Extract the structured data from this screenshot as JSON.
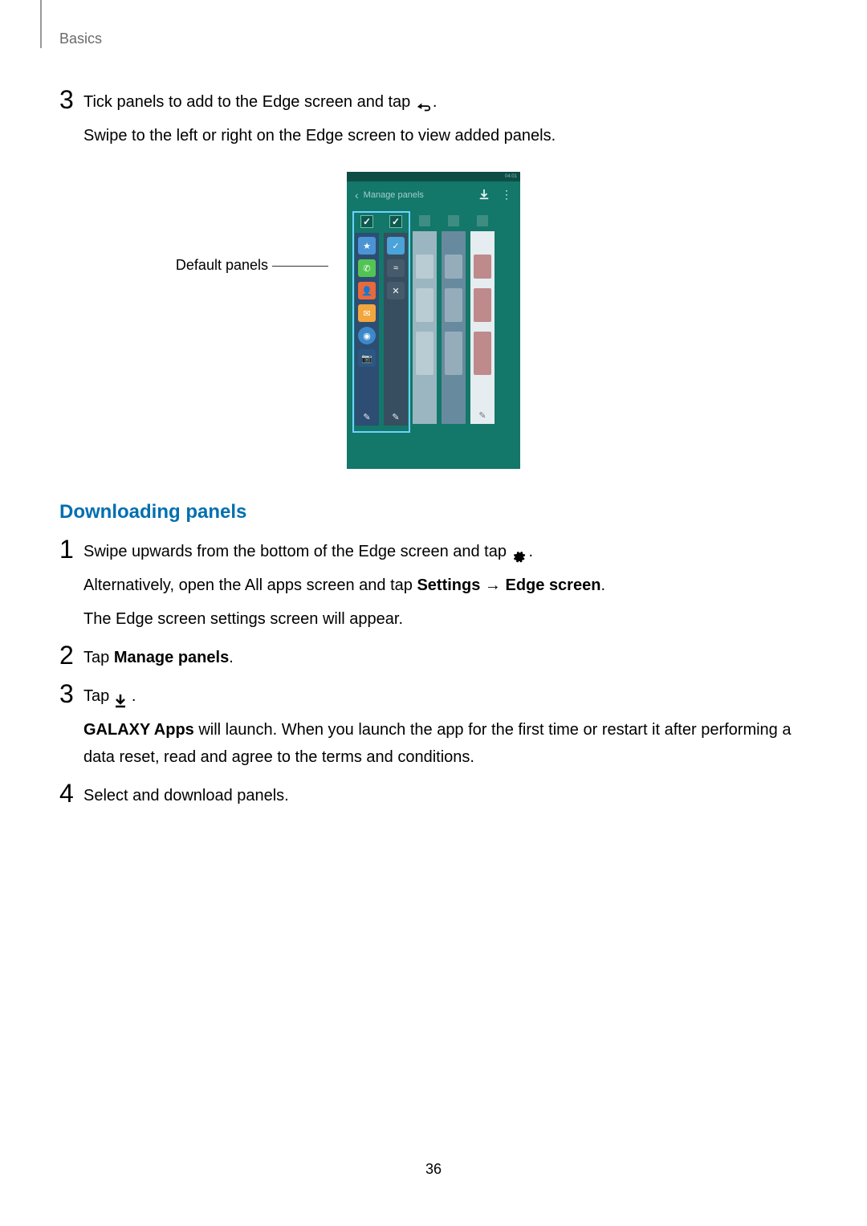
{
  "header": "Basics",
  "page_number": "36",
  "section1": {
    "step_num": "3",
    "step_line1_a": "Tick panels to add to the Edge screen and tap ",
    "step_line1_b": ".",
    "step_line2": "Swipe to the left or right on the Edge screen to view added panels."
  },
  "figure": {
    "callout": "Default panels",
    "screenshot": {
      "header_title": "Manage panels",
      "statusbar_time": "04:01",
      "panels": [
        {
          "type": "favorites",
          "bg": "#2d4d73",
          "checked": true,
          "icons": [
            {
              "bg": "#4a94d6",
              "glyph": "★"
            },
            {
              "bg": "#52c453",
              "glyph": "✆"
            },
            {
              "bg": "#e66a3c",
              "glyph": "👤"
            },
            {
              "bg": "#f2a63d",
              "glyph": "✉"
            },
            {
              "bg": "#3d88c9",
              "glyph": "◉",
              "round": true
            },
            {
              "bg": "#2b5780",
              "glyph": "📷"
            }
          ]
        },
        {
          "type": "apps",
          "bg": "#364e60",
          "checked": true,
          "icons": [
            {
              "bg": "#4aa3d9",
              "glyph": "✓"
            },
            {
              "bg": "rgba(255,255,255,0.08)",
              "glyph": "≈"
            },
            {
              "bg": "rgba(255,255,255,0.08)",
              "glyph": "✕"
            }
          ]
        },
        {
          "type": "feed1",
          "bg": "#9bb6c1",
          "checked": false
        },
        {
          "type": "feed2",
          "bg": "#688a9e",
          "checked": false
        },
        {
          "type": "feed3",
          "bg": "#e6edf0",
          "checked": false
        }
      ]
    }
  },
  "heading2": "Downloading panels",
  "section2_steps": [
    {
      "num": "1",
      "lines": [
        {
          "parts": [
            {
              "t": "Swipe upwards from the bottom of the Edge screen and tap "
            },
            {
              "icon": "gear"
            },
            {
              "t": "."
            }
          ]
        },
        {
          "parts": [
            {
              "t": "Alternatively, open the All apps screen and tap "
            },
            {
              "t": "Settings",
              "b": true
            },
            {
              "t": " → "
            },
            {
              "t": "Edge screen",
              "b": true
            },
            {
              "t": "."
            }
          ]
        },
        {
          "parts": [
            {
              "t": "The Edge screen settings screen will appear."
            }
          ]
        }
      ]
    },
    {
      "num": "2",
      "lines": [
        {
          "parts": [
            {
              "t": "Tap "
            },
            {
              "t": "Manage panels",
              "b": true
            },
            {
              "t": "."
            }
          ]
        }
      ]
    },
    {
      "num": "3",
      "lines": [
        {
          "parts": [
            {
              "t": "Tap "
            },
            {
              "icon": "download"
            },
            {
              "t": "."
            }
          ]
        },
        {
          "parts": [
            {
              "t": "GALAXY Apps",
              "b": true
            },
            {
              "t": " will launch. When you launch the app for the first time or restart it after performing a data reset, read and agree to the terms and conditions."
            }
          ]
        }
      ]
    },
    {
      "num": "4",
      "lines": [
        {
          "parts": [
            {
              "t": "Select and download panels."
            }
          ]
        }
      ]
    }
  ]
}
